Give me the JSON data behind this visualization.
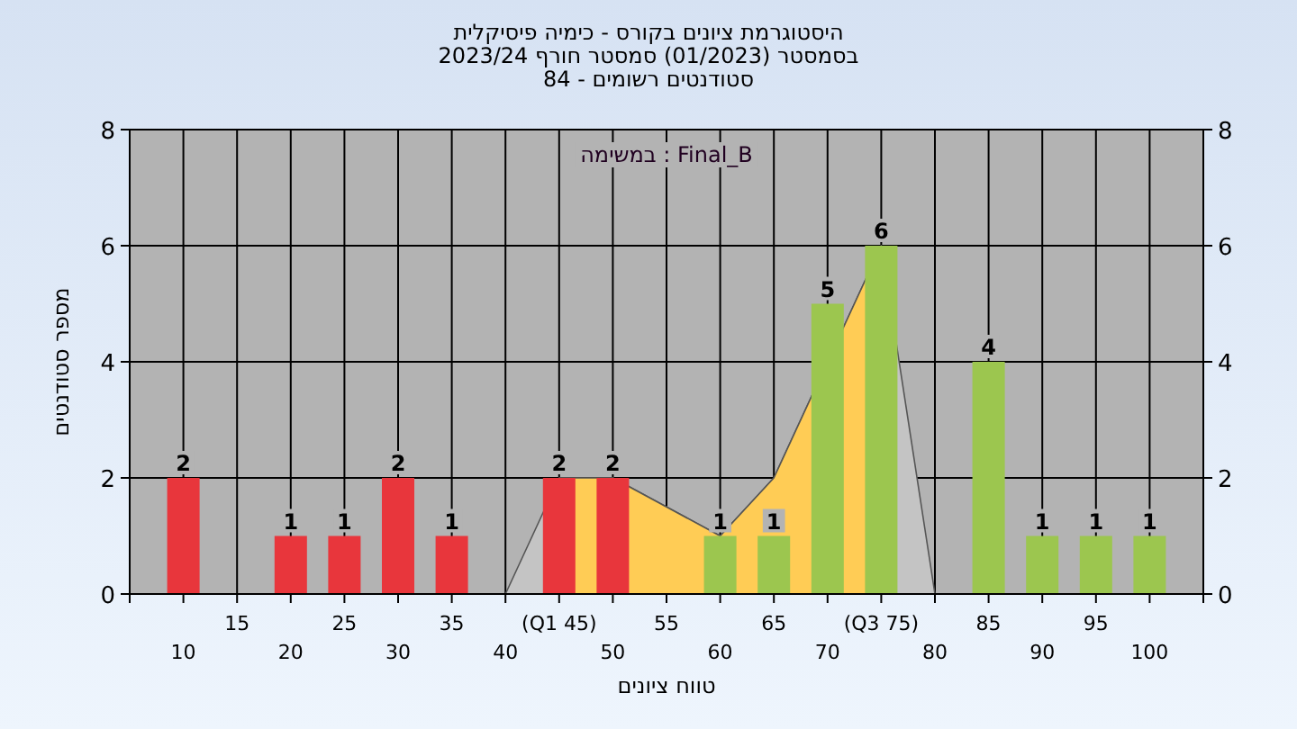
{
  "chart_data": {
    "type": "bar",
    "title": "היסטוגרמת ציונים בקורס - כימיה פיסיקלית",
    "subtitle": "בסמסטר  (01/2023)  סמסטר חורף 2023/24\nסטודנטים רשומים - 84",
    "xlabel": "טווח ציונים",
    "ylabel": "מספר סטודנטים",
    "annotations": [
      "במשימה : Final_B"
    ],
    "categories": [
      "10",
      "15",
      "20",
      "25",
      "30",
      "35",
      "40",
      "(Q1 45)",
      "50",
      "55",
      "60",
      "65",
      "70",
      "(Q3 75)",
      "80",
      "85",
      "90",
      "95",
      "100"
    ],
    "series": [
      {
        "type": "area",
        "color": "#c4c4c4",
        "x": [
          "40",
          "(Q1 45)",
          "50",
          "55",
          "60",
          "65",
          "(Q3 75)",
          "80"
        ],
        "values": [
          0,
          2,
          2,
          1.5,
          1,
          2,
          6,
          0
        ]
      },
      {
        "type": "area",
        "color": "#ffcc55",
        "x": [
          "(Q1 45)",
          "50",
          "55",
          "60",
          "65",
          "(Q3 75)"
        ],
        "values": [
          2,
          2,
          1.5,
          1,
          2,
          6
        ]
      },
      {
        "colors": [
          "#e8363c",
          "#e8363c",
          "#e8363c",
          "#e8363c",
          "#e8363c",
          "#e8363c",
          "#e8363c",
          "#e8363c",
          "#e8363c",
          "#9cc64f",
          "#9cc64f",
          "#9cc64f",
          "#9cc64f",
          "#9cc64f",
          "#9cc64f",
          "#9cc64f",
          "#9cc64f",
          "#9cc64f",
          "#9cc64f"
        ],
        "values": [
          2,
          0,
          1,
          1,
          2,
          1,
          0,
          2,
          2,
          0,
          1,
          1,
          5,
          6,
          0,
          4,
          1,
          1,
          1
        ],
        "value_labels": [
          "2",
          null,
          "1",
          "1",
          "2",
          "1",
          null,
          "2",
          "2",
          null,
          "1",
          "1",
          "5",
          "6",
          null,
          "4",
          "1",
          "1",
          "1"
        ]
      }
    ],
    "ylim": [
      0,
      8
    ],
    "yticks": [
      0,
      2,
      4,
      6,
      8
    ],
    "y2lim": [
      0,
      8
    ],
    "y2ticks": [
      0,
      2,
      4,
      6,
      8
    ],
    "grid": true
  }
}
